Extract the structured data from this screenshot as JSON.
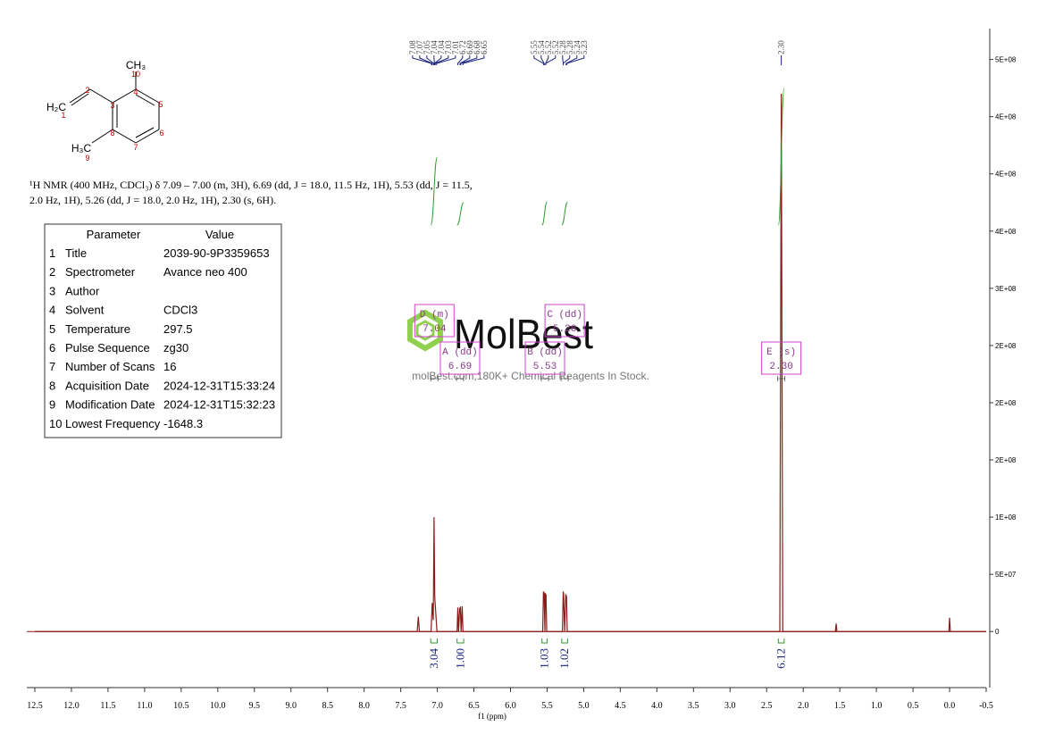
{
  "chart_data": {
    "type": "nmr",
    "xlabel": "f1 (ppm)",
    "xlim": [
      12.5,
      -0.5
    ],
    "xticks": [
      12.5,
      {
        "value": 12,
        "label": "12.0"
      },
      11.5,
      {
        "value": 11,
        "label": "11.0"
      },
      10.5,
      {
        "value": 10,
        "label": "10.0"
      },
      9.5,
      {
        "value": 9,
        "label": "9.0"
      },
      8.5,
      {
        "value": 8,
        "label": "8.0"
      },
      7.5,
      {
        "value": 7,
        "label": "7.0"
      },
      6.5,
      {
        "value": 6,
        "label": "6.0"
      },
      5.5,
      {
        "value": 5,
        "label": "5.0"
      },
      4.5,
      {
        "value": 4,
        "label": "4.0"
      },
      3.5,
      {
        "value": 3,
        "label": "3.0"
      },
      2.5,
      {
        "value": 2,
        "label": "2.0"
      },
      1.5,
      {
        "value": 1,
        "label": "1.0"
      },
      0.5,
      {
        "value": 0,
        "label": "0.0"
      },
      -0.5
    ],
    "ylim": [
      -49000000,
      527000000
    ],
    "yticks": [
      0,
      {
        "value": 50000000,
        "label": "5E+07"
      },
      {
        "value": 100000000,
        "label": "1E+08"
      },
      {
        "value": 150000000,
        "label": "2E+08"
      },
      {
        "value": 200000000,
        "label": "2E+08"
      },
      {
        "value": 250000000,
        "label": "2E+08"
      },
      {
        "value": 300000000,
        "label": "3E+08"
      },
      {
        "value": 350000000,
        "label": "4E+08"
      },
      {
        "value": 400000000,
        "label": "4E+08"
      },
      {
        "value": 450000000,
        "label": "4E+08"
      },
      {
        "value": 500000000,
        "label": "5E+08"
      }
    ],
    "color": "#8b1a1a",
    "x": [
      12.5,
      7.275,
      7.26,
      7.245,
      7.085,
      7.07,
      7.055,
      7.045,
      7.035,
      7.02,
      7.005,
      6.73,
      6.72,
      6.71,
      6.695,
      6.685,
      6.675,
      6.66,
      6.65,
      5.56,
      5.55,
      5.54,
      5.53,
      5.525,
      5.515,
      5.505,
      5.29,
      5.28,
      5.275,
      5.26,
      5.245,
      5.235,
      5.225,
      2.32,
      2.3,
      2.28,
      1.56,
      1.55,
      1.54,
      0.01,
      0,
      -0.01,
      -0.5
    ],
    "values": [
      0,
      0,
      13000000,
      0,
      0,
      25000000,
      10000000,
      100000000,
      30000000,
      15000000,
      0,
      0,
      21000000,
      0,
      20000000,
      21000000,
      0,
      22000000,
      0,
      0,
      35000000,
      33000000,
      0,
      33000000,
      32000000,
      0,
      0,
      35000000,
      33000000,
      0,
      32000000,
      31000000,
      0,
      0,
      470000000,
      0,
      0,
      7000000,
      0,
      0,
      12000000,
      0,
      0
    ],
    "peak_labels": [
      7.08,
      7.07,
      7.05,
      7.04,
      7.04,
      7.03,
      7.01,
      6.72,
      6.69,
      6.68,
      6.65,
      5.55,
      5.54,
      5.52,
      5.52,
      5.28,
      5.28,
      5.24,
      5.23,
      {
        "value": 2.3,
        "label": "2.30"
      }
    ],
    "integrals": {
      "ranges": [
        [
          7.09,
          7.0
        ],
        [
          6.73,
          6.64
        ],
        [
          5.57,
          5.5
        ],
        [
          5.3,
          5.22
        ],
        [
          2.34,
          2.26
        ]
      ],
      "values": [
        3.04,
        1,
        1.03,
        1.02,
        6.12
      ],
      "value_labels": [
        "3.04",
        "1.00",
        "1.03",
        "1.02",
        "6.12"
      ]
    },
    "multiplets": [
      {
        "name": "A (dd)",
        "shift": 6.69
      },
      {
        "name": "B (dd)",
        "shift": 5.53
      },
      {
        "name": "C (dd)",
        "shift": 5.26
      },
      {
        "name": "D (m)",
        "shift": 7.04
      },
      {
        "name": "E (s)",
        "shift": {
          "value": 2.3,
          "label": "2.30"
        }
      }
    ]
  },
  "structure": {
    "groups": [
      "CH₃",
      "H₂C",
      "H₃C"
    ],
    "atom_numbers": [
      "10",
      "2",
      "4",
      "3",
      "5",
      "1",
      "8",
      "6",
      "7",
      "9"
    ]
  },
  "description": [
    "¹H NMR (400 MHz, CDCl₃) δ 7.09 – 7.00 (m, 3H), 6.69 (dd, J = 18.0, 11.5 Hz, 1H), 5.53 (dd, J = 11.5,",
    "2.0 Hz, 1H), 5.26 (dd, J = 18.0, 2.0 Hz, 1H), 2.30 (s, 6H)."
  ],
  "parameters": {
    "header": [
      "Parameter",
      "Value"
    ],
    "rows": [
      [
        "1",
        "Title",
        "2039-90-9P3359653"
      ],
      [
        "2",
        "Spectrometer",
        "Avance neo 400"
      ],
      [
        "3",
        "Author"
      ],
      [
        "4",
        "Solvent",
        "CDCl3"
      ],
      [
        "5",
        "Temperature",
        "297.5"
      ],
      [
        "6",
        "Pulse Sequence",
        "zg30"
      ],
      [
        "7",
        "Number of Scans",
        "16"
      ],
      [
        "8",
        "Acquisition Date",
        "2024-12-31T15:33:24"
      ],
      [
        "9",
        "Modification Date",
        "2024-12-31T15:32:23"
      ],
      [
        "10",
        "Lowest Frequency",
        "-1648.3"
      ]
    ]
  },
  "watermark": {
    "logo": "MolBest",
    "text": "molBest.com,180K+ Chemical Reagents In Stock."
  }
}
